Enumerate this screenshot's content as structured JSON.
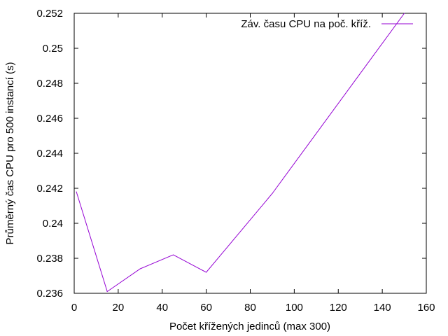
{
  "chart_data": {
    "type": "line",
    "title": "",
    "xlabel": "Počet křížených jedinců (max 300)",
    "ylabel": "Průměrný čas CPU pro 500 instancí (s)",
    "xlim": [
      0,
      160
    ],
    "ylim": [
      0.236,
      0.252
    ],
    "x_ticks": [
      0,
      20,
      40,
      60,
      80,
      100,
      120,
      140,
      160
    ],
    "y_ticks": [
      0.236,
      0.238,
      0.24,
      0.242,
      0.244,
      0.246,
      0.248,
      0.25,
      0.252
    ],
    "grid": false,
    "legend_position": "top-right",
    "colors": {
      "series": "#9400d3",
      "axis": "#000000",
      "background": "#ffffff"
    },
    "series": [
      {
        "name": "Záv. času CPU na poč. kříž.",
        "x": [
          1,
          15,
          30,
          45,
          60,
          90,
          150
        ],
        "y": [
          0.2418,
          0.2361,
          0.2374,
          0.2382,
          0.2372,
          0.2417,
          0.252
        ]
      }
    ]
  }
}
